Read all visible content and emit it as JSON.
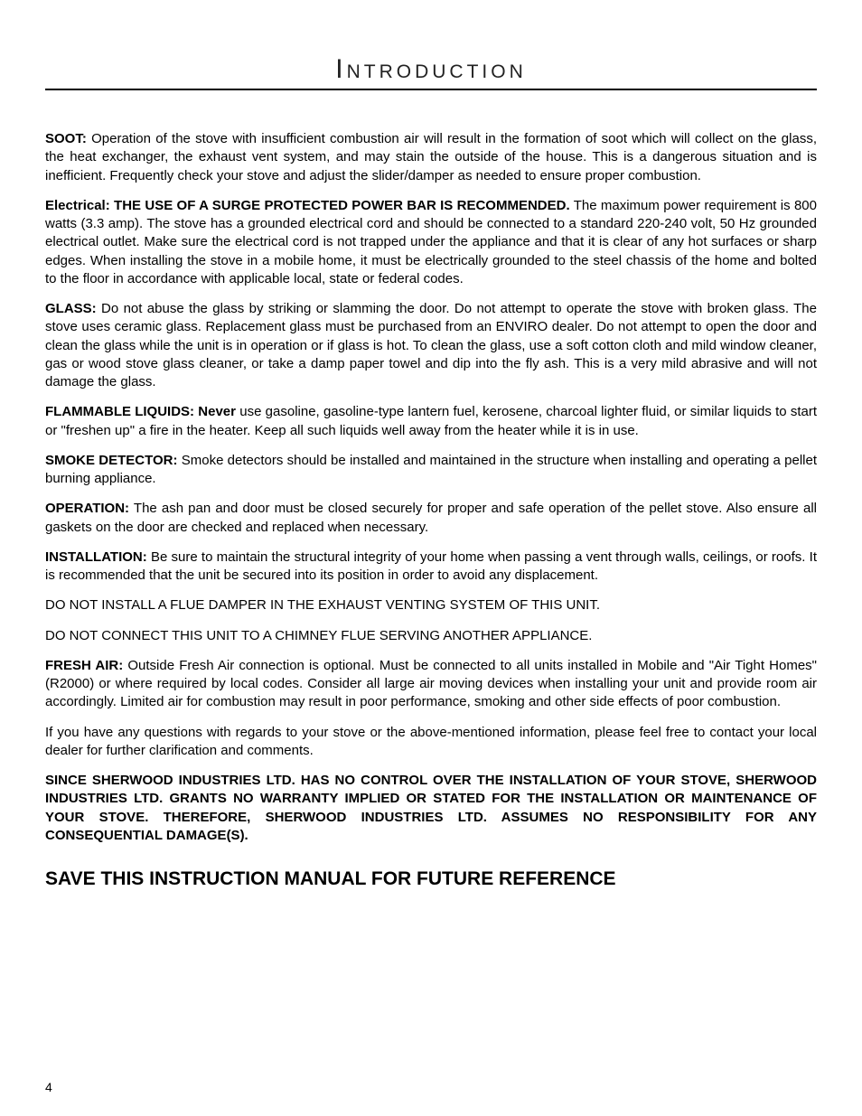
{
  "title": "Introduction",
  "paragraphs": {
    "soot_label": "SOOT:",
    "soot_text": " Operation of the stove with insufficient combustion air will result in the formation of soot which will collect on the glass, the heat exchanger, the exhaust vent system, and may stain the outside of the house. This is a dangerous situation and is inefficient. Frequently check your stove and adjust the slider/damper as needed to ensure proper combustion.",
    "electrical_label": "Electrical:  THE USE OF A SURGE PROTECTED POWER BAR IS RECOMMENDED.",
    "electrical_text": "  The maximum power requirement is 800 watts (3.3 amp).  The stove has a grounded electrical cord and should be connected to a standard 220-240 volt, 50 Hz grounded electrical outlet.  Make sure the electrical cord is not trapped under the appliance and that it is clear of any hot surfaces or sharp edges.  When installing the stove in a mobile home, it must be electrically grounded to the steel chassis of the home and bolted to the floor in accordance with applicable local, state or federal codes.",
    "glass_label": "GLASS:",
    "glass_text": " Do not abuse the glass by striking or slamming the door.  Do not attempt to operate the stove with broken glass. The stove uses ceramic glass. Replacement glass must be purchased from an ENVIRO dealer.  Do not attempt to open the door and clean the glass while the unit is in operation or if glass is hot. To clean the glass, use a soft cotton cloth and mild window cleaner, gas or wood stove glass cleaner, or take a damp paper towel and dip into the fly ash. This is a very mild abrasive and will not damage the glass.",
    "flammable_label": "FLAMMABLE LIQUIDS: Never",
    "flammable_text": " use gasoline, gasoline-type lantern fuel, kerosene, charcoal lighter fluid, or similar liquids to start or \"freshen up\" a fire in the heater.  Keep all such liquids well away from the heater while it is in use.",
    "smoke_label": "SMOKE DETECTOR:",
    "smoke_text": " Smoke detectors should be installed and maintained in the structure when installing and operating a pellet burning appliance.",
    "operation_label": "OPERATION:",
    "operation_text": " The ash pan and door must be closed securely for proper and safe operation of the pellet stove. Also ensure all gaskets on the door are checked and replaced when necessary.",
    "installation_label": "INSTALLATION:",
    "installation_text": " Be sure to maintain the structural integrity of your home when passing a vent through walls, ceilings, or roofs. It is recommended that the unit be secured into its position in order to avoid any displacement.",
    "flue_damper": "DO NOT INSTALL A FLUE DAMPER IN THE EXHAUST VENTING SYSTEM OF THIS UNIT.",
    "chimney": "DO NOT CONNECT THIS UNIT TO A CHIMNEY FLUE SERVING ANOTHER APPLIANCE.",
    "freshair_label": "FRESH AIR:",
    "freshair_text": " Outside Fresh Air connection is optional. Must be connected to all units installed in Mobile and \"Air Tight Homes\" (R2000) or where required by local codes. Consider all large air moving devices when installing your unit and provide room air accordingly. Limited air for combustion may result in poor performance, smoking and other side effects of poor combustion.",
    "questions": "If you have any questions with regards to your stove or the above-mentioned information, please feel free to contact your local dealer for further clarification and comments.",
    "disclaimer": "SINCE SHERWOOD INDUSTRIES LTD. HAS NO CONTROL OVER THE INSTALLATION OF YOUR STOVE, SHERWOOD INDUSTRIES LTD. GRANTS NO WARRANTY IMPLIED OR STATED FOR THE INSTALLATION OR MAINTENANCE OF YOUR STOVE. THEREFORE, SHERWOOD INDUSTRIES LTD. ASSUMES NO RESPONSIBILITY FOR ANY CONSEQUENTIAL DAMAGE(S)."
  },
  "save_line": "SAVE THIS INSTRUCTION MANUAL FOR FUTURE REFERENCE",
  "page_number": "4"
}
